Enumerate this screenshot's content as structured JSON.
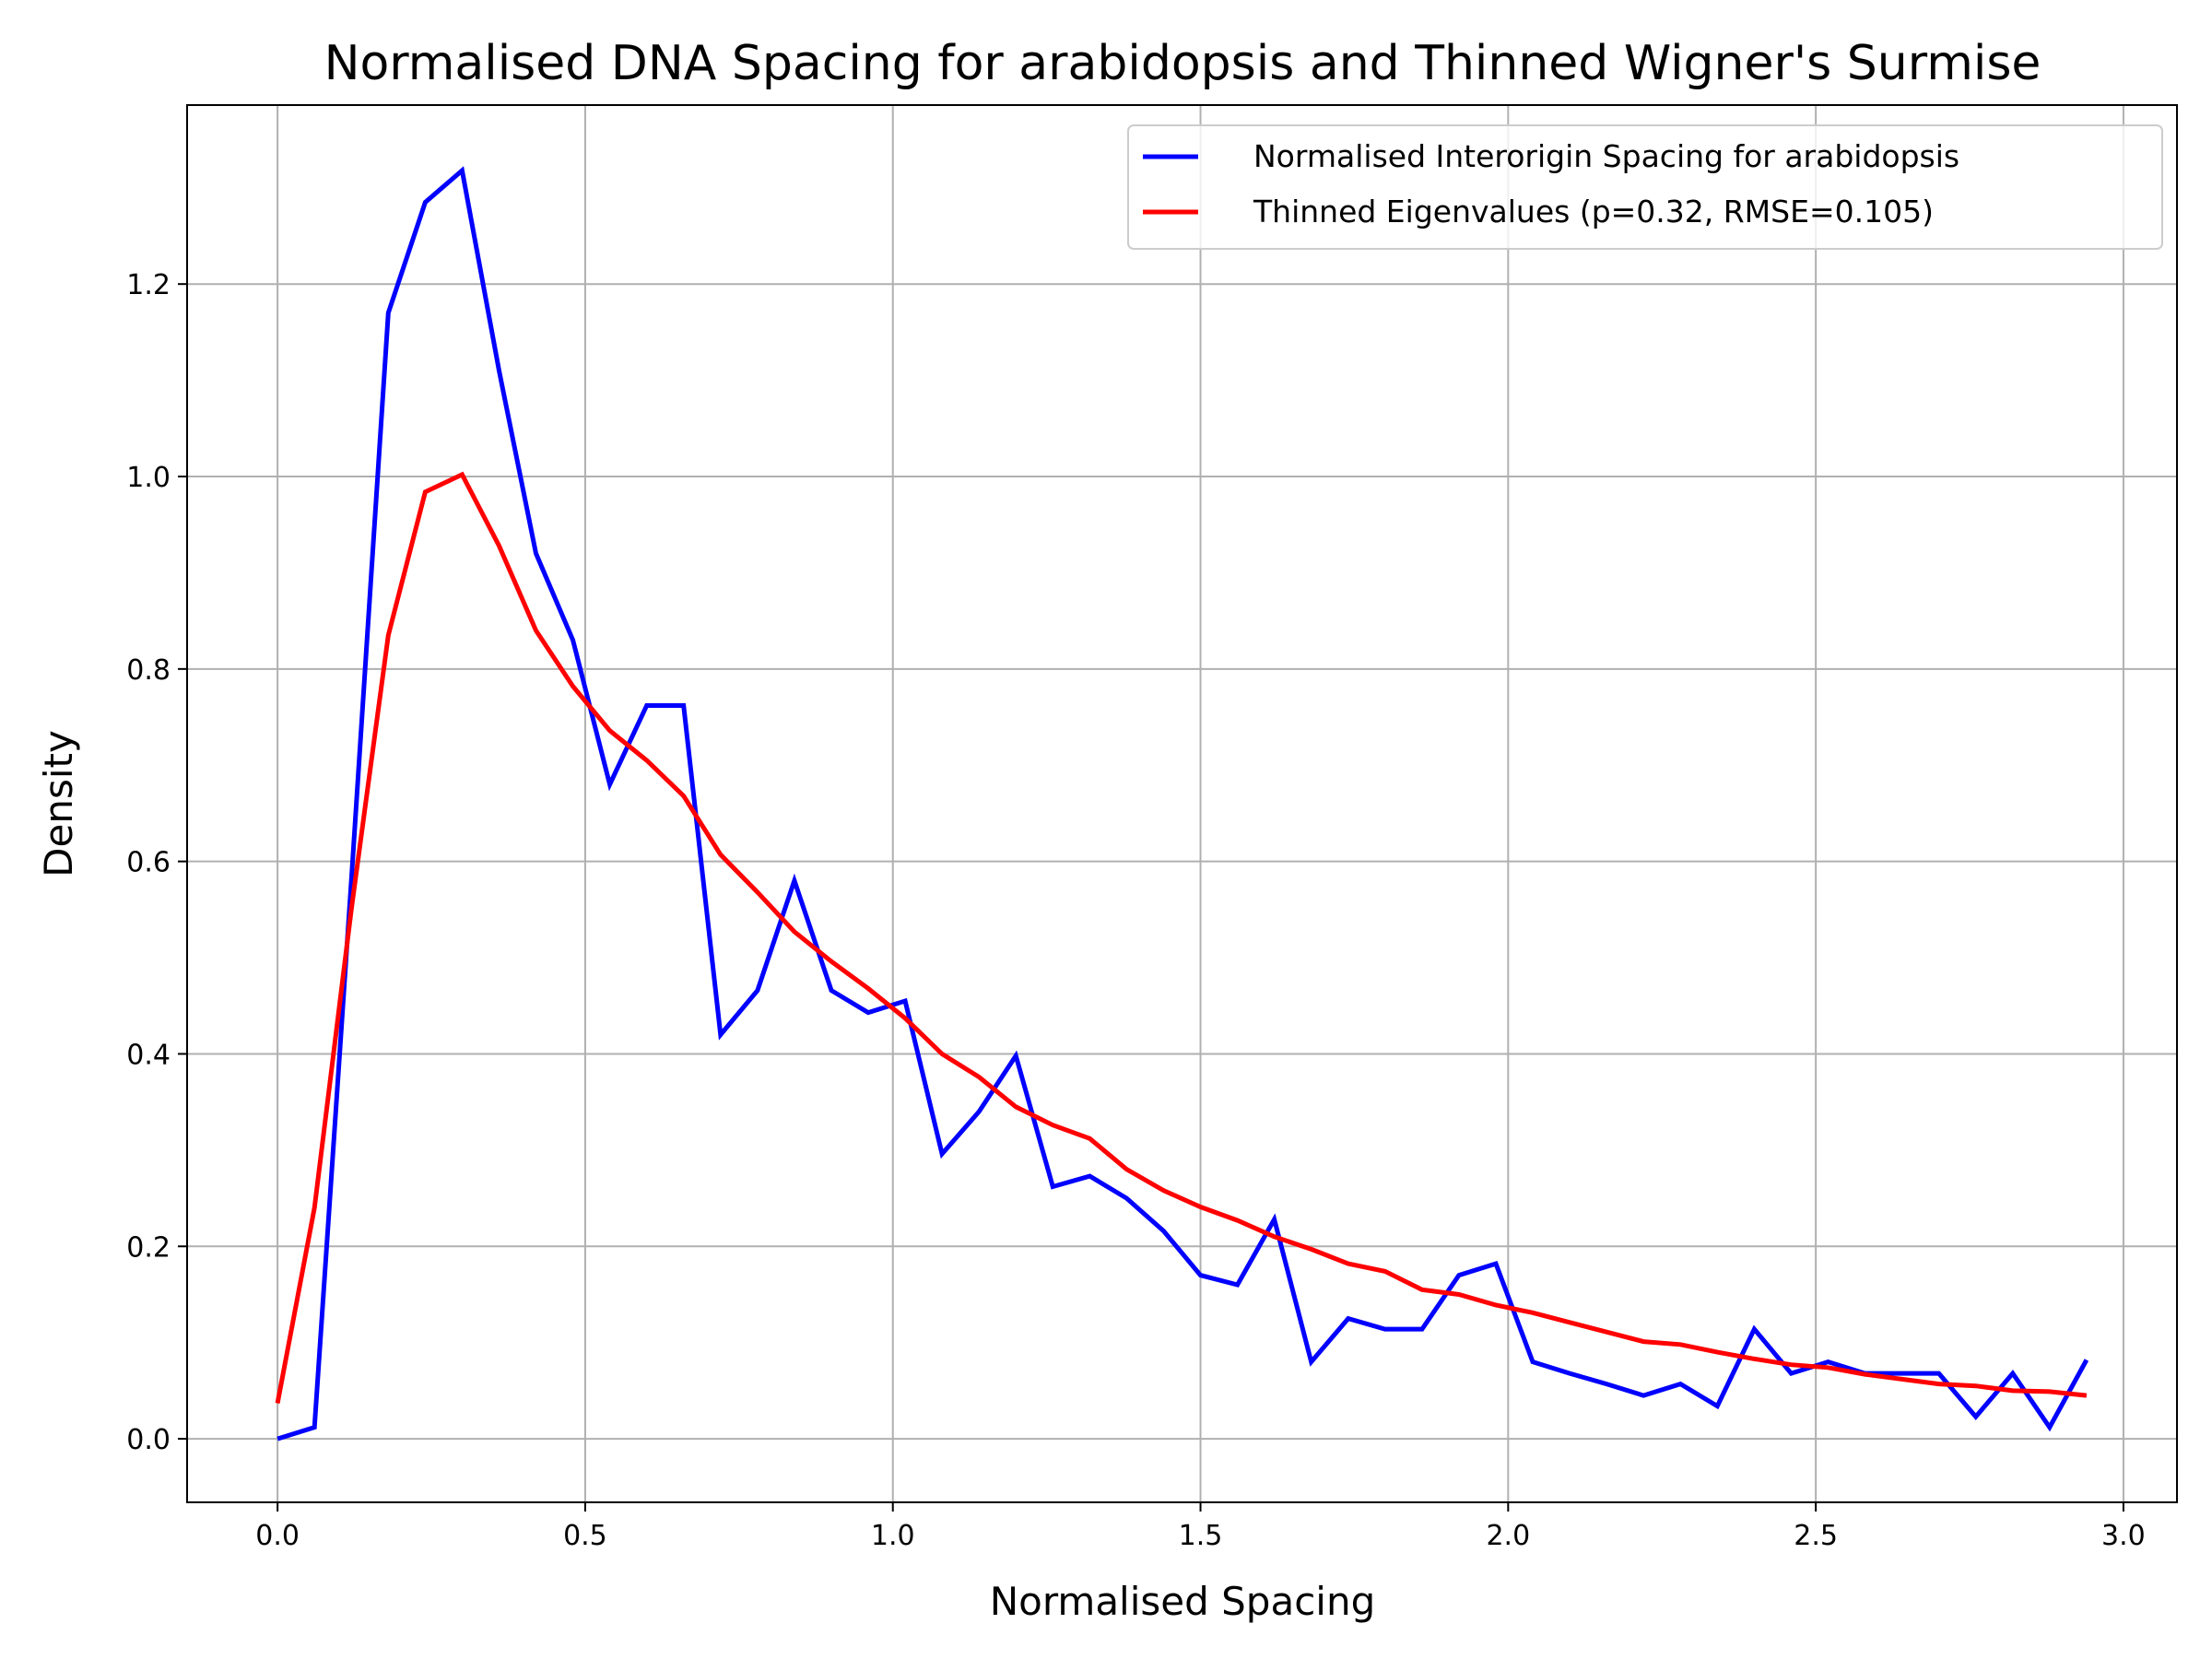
{
  "chart_data": {
    "type": "line",
    "title": "Normalised DNA Spacing for arabidopsis and Thinned Wigner's Surmise",
    "xlabel": "Normalised Spacing",
    "ylabel": "Density",
    "xlim": [
      -0.147,
      3.087
    ],
    "ylim": [
      -0.066,
      1.386
    ],
    "xticks": [
      0.0,
      0.5,
      1.0,
      1.5,
      2.0,
      2.5,
      3.0
    ],
    "xtick_labels": [
      "0.0",
      "0.5",
      "1.0",
      "1.5",
      "2.0",
      "2.5",
      "3.0"
    ],
    "yticks": [
      0.0,
      0.2,
      0.4,
      0.6,
      0.8,
      1.0,
      1.2
    ],
    "ytick_labels": [
      "0.0",
      "0.2",
      "0.4",
      "0.6",
      "0.8",
      "1.0",
      "1.2"
    ],
    "grid": true,
    "legend_position": "top-right",
    "series": [
      {
        "name": "Normalised Interorigin Spacing for arabidopsis",
        "color": "#0000ff",
        "x": [
          0.0,
          0.06,
          0.12,
          0.18,
          0.24,
          0.3,
          0.36,
          0.42,
          0.48,
          0.54,
          0.6,
          0.66,
          0.72,
          0.78,
          0.84,
          0.9,
          0.96,
          1.02,
          1.08,
          1.14,
          1.2,
          1.26,
          1.32,
          1.38,
          1.44,
          1.5,
          1.56,
          1.62,
          1.68,
          1.74,
          1.8,
          1.86,
          1.92,
          1.98,
          2.04,
          2.1,
          2.16,
          2.22,
          2.28,
          2.34,
          2.4,
          2.46,
          2.52,
          2.58,
          2.64,
          2.7,
          2.76,
          2.82,
          2.88,
          2.94
        ],
        "y": [
          0.0,
          0.012,
          0.58,
          1.17,
          1.285,
          1.318,
          1.11,
          0.92,
          0.83,
          0.68,
          0.762,
          0.762,
          0.42,
          0.466,
          0.58,
          0.466,
          0.443,
          0.455,
          0.296,
          0.34,
          0.398,
          0.262,
          0.273,
          0.25,
          0.216,
          0.17,
          0.16,
          0.228,
          0.08,
          0.125,
          0.114,
          0.114,
          0.17,
          0.182,
          0.08,
          0.068,
          0.057,
          0.045,
          0.057,
          0.034,
          0.114,
          0.068,
          0.08,
          0.068,
          0.068,
          0.068,
          0.023,
          0.068,
          0.012,
          0.082
        ]
      },
      {
        "name": "Thinned Eigenvalues (p=0.32, RMSE=0.105)",
        "color": "#ff0000",
        "x": [
          0.0,
          0.06,
          0.12,
          0.18,
          0.24,
          0.3,
          0.36,
          0.42,
          0.48,
          0.54,
          0.6,
          0.66,
          0.72,
          0.78,
          0.84,
          0.9,
          0.96,
          1.02,
          1.08,
          1.14,
          1.2,
          1.26,
          1.32,
          1.38,
          1.44,
          1.5,
          1.56,
          1.62,
          1.68,
          1.74,
          1.8,
          1.86,
          1.92,
          1.98,
          2.04,
          2.1,
          2.16,
          2.22,
          2.28,
          2.34,
          2.4,
          2.46,
          2.52,
          2.58,
          2.64,
          2.7,
          2.76,
          2.82,
          2.88,
          2.94
        ],
        "y": [
          0.037,
          0.24,
          0.55,
          0.835,
          0.984,
          1.002,
          0.928,
          0.84,
          0.782,
          0.736,
          0.705,
          0.668,
          0.607,
          0.568,
          0.527,
          0.496,
          0.468,
          0.437,
          0.4,
          0.376,
          0.345,
          0.326,
          0.312,
          0.28,
          0.258,
          0.241,
          0.227,
          0.21,
          0.197,
          0.182,
          0.174,
          0.155,
          0.15,
          0.139,
          0.131,
          0.121,
          0.111,
          0.101,
          0.098,
          0.09,
          0.083,
          0.077,
          0.074,
          0.067,
          0.062,
          0.057,
          0.055,
          0.05,
          0.049,
          0.045
        ]
      }
    ]
  }
}
